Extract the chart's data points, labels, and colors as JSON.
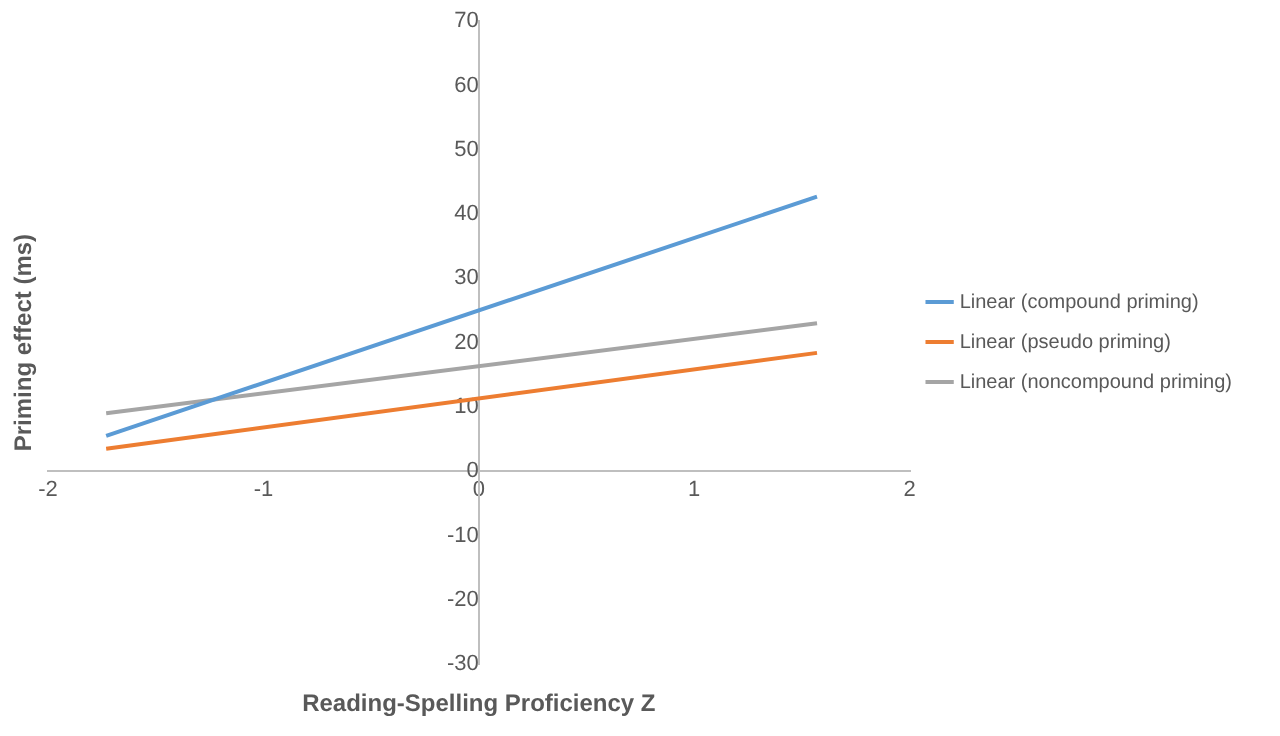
{
  "chart_data": {
    "type": "line",
    "xlabel": "Reading-Spelling Proficiency Z",
    "ylabel": "Priming effect (ms)",
    "x": [
      -1.73,
      1.57
    ],
    "series": [
      {
        "name": "Linear (compound priming)",
        "color": "#5b9bd5",
        "values": [
          5.5,
          42.7
        ]
      },
      {
        "name": "Linear (pseudo priming)",
        "color": "#ed7d31",
        "values": [
          3.5,
          18.4
        ]
      },
      {
        "name": "Linear (noncompound priming)",
        "color": "#a5a5a5",
        "values": [
          9,
          23
        ]
      }
    ],
    "xlim": [
      -2,
      2
    ],
    "xticks": [
      -2,
      -1,
      0,
      1,
      2
    ],
    "ylim": [
      -30,
      70
    ],
    "yticks": [
      -30,
      -20,
      -10,
      0,
      10,
      20,
      30,
      40,
      50,
      60,
      70
    ],
    "grid": false,
    "legend": "right",
    "marker": "none",
    "line_style": "solid"
  }
}
